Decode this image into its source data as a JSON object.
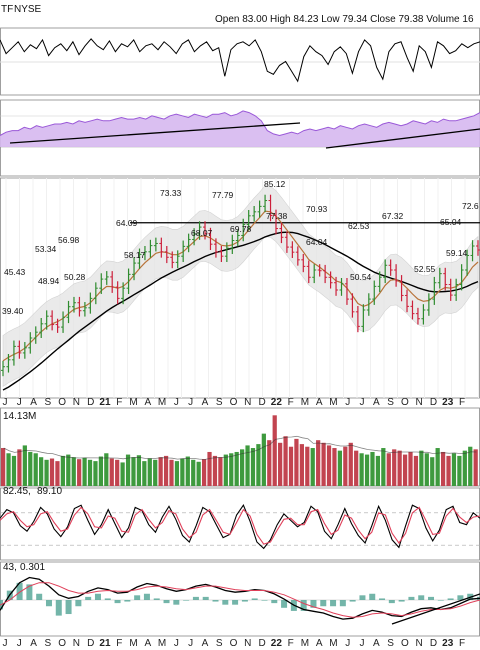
{
  "header": {
    "ticker_tail": "TF",
    "exchange": "NYSE",
    "ohlc_text": "Open 83.00  High 84.23  Low 79.34  Close 79.38  Volume 16"
  },
  "volume_panel": {
    "label": "14.13M"
  },
  "stoch_panel": {
    "value_a": "82.45,",
    "value_b": "89.10"
  },
  "macd_panel": {
    "value_a": "43,",
    "value_b": "0.301"
  },
  "colors": {
    "up": "#2e8b2e",
    "down": "#cc1f3a",
    "ma_fast": "#b8733a",
    "ma_slow": "#000000",
    "rsi_fill": "#d6b8f0",
    "rsi_line": "#9a58d8",
    "volume_green": "#3e9a3e",
    "volume_red": "#c24450",
    "stoch_k": "#000000",
    "stoch_d": "#e0405a",
    "histogram": "#5aa89a",
    "grid": "#e2e2e2"
  },
  "chart_data": [
    {
      "panel": "momentum-oscillator",
      "type": "line",
      "y": [
        72,
        58,
        64,
        70,
        60,
        67,
        63,
        72,
        56,
        64,
        68,
        61,
        70,
        57,
        66,
        73,
        66,
        62,
        71,
        60,
        68,
        65,
        72,
        60,
        66,
        68,
        62,
        70,
        65,
        58,
        68,
        72,
        60,
        66,
        70,
        61,
        64,
        35,
        62,
        68,
        70,
        66,
        72,
        60,
        40,
        37,
        46,
        50,
        40,
        30,
        55,
        66,
        60,
        56,
        47,
        60,
        65,
        58,
        38,
        60,
        72,
        66,
        44,
        32,
        60,
        68,
        70,
        54,
        40,
        66,
        60,
        44,
        70,
        66,
        58,
        61,
        68,
        64,
        68,
        70
      ]
    },
    {
      "panel": "rsi",
      "type": "area",
      "y": [
        57,
        59,
        60,
        60,
        62,
        61,
        63,
        62,
        63,
        64,
        64,
        65,
        64,
        66,
        65,
        66,
        67,
        66,
        66,
        67,
        68,
        67,
        67,
        68,
        67,
        69,
        68,
        67,
        69,
        70,
        69,
        68,
        70,
        69,
        68,
        70,
        70,
        71,
        69,
        70,
        72,
        71,
        69,
        66,
        60,
        58,
        57,
        58,
        59,
        58,
        60,
        61,
        60,
        61,
        62,
        61,
        63,
        62,
        61,
        63,
        64,
        63,
        62,
        64,
        65,
        64,
        63,
        64,
        66,
        65,
        64,
        66,
        65,
        67,
        66,
        66,
        67,
        68,
        69,
        71
      ]
    },
    {
      "panel": "price",
      "type": "candlestick",
      "x_labels": [
        "J",
        "J",
        "A",
        "S",
        "O",
        "N",
        "D",
        "21",
        "F",
        "M",
        "A",
        "M",
        "J",
        "J",
        "A",
        "S",
        "O",
        "N",
        "D",
        "22",
        "F",
        "M",
        "A",
        "M",
        "J",
        "J",
        "A",
        "S",
        "O",
        "N",
        "D",
        "23",
        "F"
      ],
      "year_labels": [
        "21",
        "22",
        "23"
      ],
      "annotations": [
        "45.43",
        "39.40",
        "53.34",
        "48.94",
        "56.98",
        "50.28",
        "64.09",
        "58.17",
        "73.33",
        "68.07",
        "77.79",
        "69.78",
        "85.12",
        "77.38",
        "70.93",
        "64.04",
        "62.53",
        "50.54",
        "67.32",
        "52.55",
        "65.04",
        "59.14",
        "72.6"
      ],
      "close": [
        39.4,
        41.3,
        45.0,
        43.2,
        44.6,
        47.3,
        48.9,
        51.2,
        53.3,
        51.0,
        50.3,
        53.0,
        55.9,
        57.0,
        54.8,
        55.6,
        58.2,
        61.0,
        63.5,
        64.1,
        61.3,
        58.2,
        61.0,
        64.8,
        67.9,
        70.3,
        71.0,
        72.7,
        73.3,
        71.0,
        69.5,
        68.1,
        69.8,
        72.5,
        74.4,
        75.9,
        77.8,
        76.0,
        73.1,
        71.0,
        69.8,
        72.0,
        74.1,
        75.5,
        78.5,
        80.9,
        82.0,
        83.5,
        85.1,
        81.0,
        77.4,
        75.0,
        72.3,
        70.9,
        68.8,
        67.0,
        64.0,
        66.0,
        65.8,
        64.0,
        62.5,
        60.5,
        62.2,
        58.0,
        54.5,
        50.5,
        55.0,
        58.0,
        61.5,
        64.0,
        67.3,
        66.0,
        63.0,
        59.0,
        56.0,
        54.0,
        52.6,
        55.0,
        58.0,
        62.5,
        65.0,
        62.0,
        59.1,
        62.0,
        66.0,
        70.0,
        72.6,
        71.5
      ],
      "ma_fast": [
        41,
        42,
        42.8,
        43.5,
        44.5,
        46,
        47.5,
        49,
        50.3,
        51.2,
        51.8,
        52.7,
        54,
        55.2,
        55.7,
        56,
        57,
        58.6,
        60.3,
        61.5,
        61.4,
        61,
        61.5,
        62.8,
        64.6,
        66.4,
        68,
        69.3,
        70.6,
        71,
        70.8,
        70.2,
        70.2,
        71,
        72.4,
        73.8,
        75.2,
        75.4,
        74.8,
        73.8,
        72.8,
        72.6,
        72.9,
        73.7,
        75.2,
        77,
        78.8,
        80.4,
        82.2,
        82,
        80.8,
        79,
        77,
        75,
        73,
        71,
        68.9,
        67.8,
        66.8,
        65.6,
        64.4,
        63,
        62.5,
        61,
        59,
        56.8,
        56,
        56.5,
        57.8,
        59.6,
        61.8,
        63.2,
        63.4,
        62.4,
        61,
        59.4,
        58,
        57.4,
        57.6,
        58.8,
        60.4,
        61.2,
        61,
        61.4,
        62.6,
        64.6,
        66.8,
        68.2
      ],
      "ma_slow": [
        33,
        33.8,
        34.8,
        35.8,
        36.9,
        38,
        39.2,
        40.4,
        41.7,
        43,
        44.3,
        45.5,
        46.7,
        48,
        49.2,
        50.3,
        51.4,
        52.5,
        53.6,
        54.7,
        55.7,
        56.6,
        57.4,
        58.3,
        59.2,
        60.1,
        61,
        61.9,
        62.9,
        63.8,
        64.6,
        65.4,
        66.1,
        66.8,
        67.5,
        68.3,
        69,
        69.7,
        70.3,
        70.8,
        71.2,
        71.6,
        72,
        72.4,
        72.8,
        73.3,
        73.8,
        74.4,
        75.1,
        75.6,
        76,
        76.3,
        76.4,
        76.3,
        76,
        75.5,
        75,
        74.4,
        73.7,
        73,
        72.2,
        71.4,
        70.6,
        69.8,
        68.9,
        67.9,
        67,
        66.2,
        65.4,
        64.8,
        64.3,
        63.8,
        63.3,
        62.8,
        62.3,
        61.7,
        61.1,
        60.6,
        60.2,
        60,
        60,
        60.1,
        60.2,
        60.5,
        60.9,
        61.5,
        62.2,
        62.8
      ],
      "resistance_level": 79
    },
    {
      "panel": "volume",
      "type": "bar",
      "values": [
        58,
        50,
        46,
        56,
        62,
        52,
        50,
        44,
        40,
        42,
        38,
        46,
        48,
        44,
        41,
        43,
        40,
        38,
        45,
        50,
        42,
        40,
        36,
        48,
        44,
        47,
        38,
        42,
        40,
        44,
        46,
        40,
        38,
        42,
        45,
        40,
        37,
        41,
        52,
        46,
        44,
        48,
        50,
        52,
        56,
        62,
        58,
        64,
        80,
        70,
        108,
        66,
        76,
        60,
        72,
        64,
        60,
        58,
        70,
        66,
        62,
        58,
        54,
        60,
        66,
        54,
        50,
        48,
        52,
        46,
        58,
        50,
        56,
        54,
        48,
        52,
        46,
        54,
        50,
        44,
        58,
        52,
        46,
        50,
        46,
        54,
        60,
        56
      ],
      "direction": [
        "d",
        "u",
        "u",
        "d",
        "u",
        "u",
        "u",
        "u",
        "u",
        "d",
        "d",
        "u",
        "u",
        "u",
        "d",
        "u",
        "u",
        "u",
        "u",
        "u",
        "d",
        "d",
        "u",
        "u",
        "u",
        "u",
        "u",
        "u",
        "u",
        "d",
        "d",
        "d",
        "u",
        "u",
        "u",
        "u",
        "u",
        "d",
        "d",
        "d",
        "d",
        "u",
        "u",
        "u",
        "u",
        "u",
        "u",
        "u",
        "u",
        "d",
        "d",
        "d",
        "d",
        "d",
        "d",
        "d",
        "d",
        "u",
        "d",
        "d",
        "d",
        "d",
        "u",
        "d",
        "d",
        "d",
        "u",
        "u",
        "u",
        "u",
        "u",
        "d",
        "d",
        "d",
        "d",
        "d",
        "d",
        "u",
        "u",
        "u",
        "u",
        "d",
        "d",
        "u",
        "u",
        "u",
        "u",
        "d"
      ]
    },
    {
      "panel": "stochastic",
      "type": "line",
      "series": [
        {
          "values": [
            70,
            86,
            80,
            56,
            46,
            64,
            90,
            78,
            50,
            36,
            54,
            88,
            94,
            66,
            40,
            58,
            86,
            60,
            34,
            52,
            90,
            84,
            58,
            44,
            72,
            92,
            68,
            38,
            26,
            56,
            90,
            82,
            58,
            34,
            40,
            76,
            94,
            64,
            26,
            14,
            30,
            58,
            78,
            66,
            54,
            62,
            92,
            82,
            46,
            32,
            58,
            88,
            60,
            38,
            24,
            56,
            92,
            66,
            30,
            16,
            56,
            94,
            88,
            52,
            28,
            48,
            86,
            92,
            62,
            58,
            80,
            70
          ]
        },
        {
          "values": [
            66,
            78,
            82,
            66,
            54,
            58,
            78,
            82,
            62,
            46,
            50,
            76,
            90,
            78,
            54,
            52,
            74,
            70,
            46,
            44,
            76,
            86,
            68,
            52,
            62,
            84,
            78,
            50,
            34,
            44,
            76,
            86,
            66,
            44,
            40,
            62,
            86,
            74,
            40,
            22,
            26,
            48,
            68,
            70,
            58,
            58,
            82,
            86,
            60,
            40,
            48,
            76,
            70,
            48,
            32,
            44,
            80,
            76,
            42,
            24,
            42,
            80,
            90,
            66,
            40,
            42,
            74,
            88,
            72,
            62,
            72,
            74
          ]
        }
      ]
    },
    {
      "panel": "macd",
      "type": "line",
      "series": [
        {
          "values": [
            -1.2,
            0.6,
            2.0,
            2.6,
            2.4,
            1.6,
            0.6,
            0.2,
            0.4,
            1.0,
            1.4,
            1.2,
            0.8,
            0.9,
            1.5,
            1.9,
            1.7,
            1.3,
            1.0,
            1.2,
            1.6,
            1.8,
            1.5,
            1.1,
            0.9,
            1.0,
            1.2,
            1.1,
            0.7,
            0.1,
            -0.6,
            -1.1,
            -1.3,
            -1.5,
            -1.9,
            -2.2,
            -2.1,
            -1.6,
            -1.2,
            -1.4,
            -1.8,
            -1.9,
            -1.4,
            -1.0,
            -0.9,
            -1.1,
            -0.9,
            -0.4,
            0.1,
            0.2
          ]
        },
        {
          "values": [
            -0.6,
            0.0,
            0.9,
            1.6,
            2.0,
            2.0,
            1.6,
            1.1,
            0.8,
            0.8,
            1.0,
            1.1,
            1.0,
            1.0,
            1.2,
            1.5,
            1.6,
            1.5,
            1.3,
            1.2,
            1.4,
            1.6,
            1.6,
            1.4,
            1.2,
            1.1,
            1.1,
            1.1,
            0.9,
            0.6,
            0.1,
            -0.4,
            -0.8,
            -1.1,
            -1.5,
            -1.8,
            -2.0,
            -1.9,
            -1.6,
            -1.5,
            -1.6,
            -1.8,
            -1.6,
            -1.3,
            -1.1,
            -1.1,
            -1.0,
            -0.7,
            -0.3,
            0.0
          ]
        }
      ]
    }
  ]
}
